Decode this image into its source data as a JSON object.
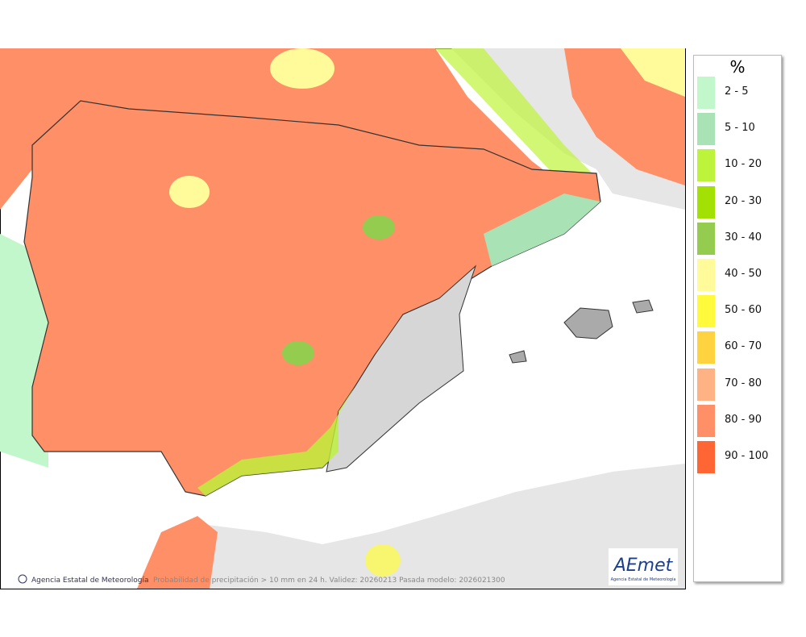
{
  "legend": {
    "title": "%",
    "items": [
      {
        "label": "2 - 5",
        "color": "#c2f7cb"
      },
      {
        "label": "5 - 10",
        "color": "#a9e2b4"
      },
      {
        "label": "10 - 20",
        "color": "#bdf33a"
      },
      {
        "label": "20 - 30",
        "color": "#a3e003"
      },
      {
        "label": "30 - 40",
        "color": "#93cc4f"
      },
      {
        "label": "40 - 50",
        "color": "#fffb9a"
      },
      {
        "label": "50 - 60",
        "color": "#fffb3c"
      },
      {
        "label": "60 - 70",
        "color": "#ffd23f"
      },
      {
        "label": "70 - 80",
        "color": "#ffb283"
      },
      {
        "label": "80 - 90",
        "color": "#ff8f66"
      },
      {
        "label": "90 - 100",
        "color": "#ff6633"
      }
    ]
  },
  "footer": {
    "agency": "Agencia Estatal de Meteorología",
    "caption": "Probabilidad de precipitación > 10 mm en 24 h. Validez: 20260213 Pasada modelo: 2026021300"
  },
  "logo": {
    "name": "AEmet",
    "subtitle": "Agencia Estatal de Meteorología"
  }
}
